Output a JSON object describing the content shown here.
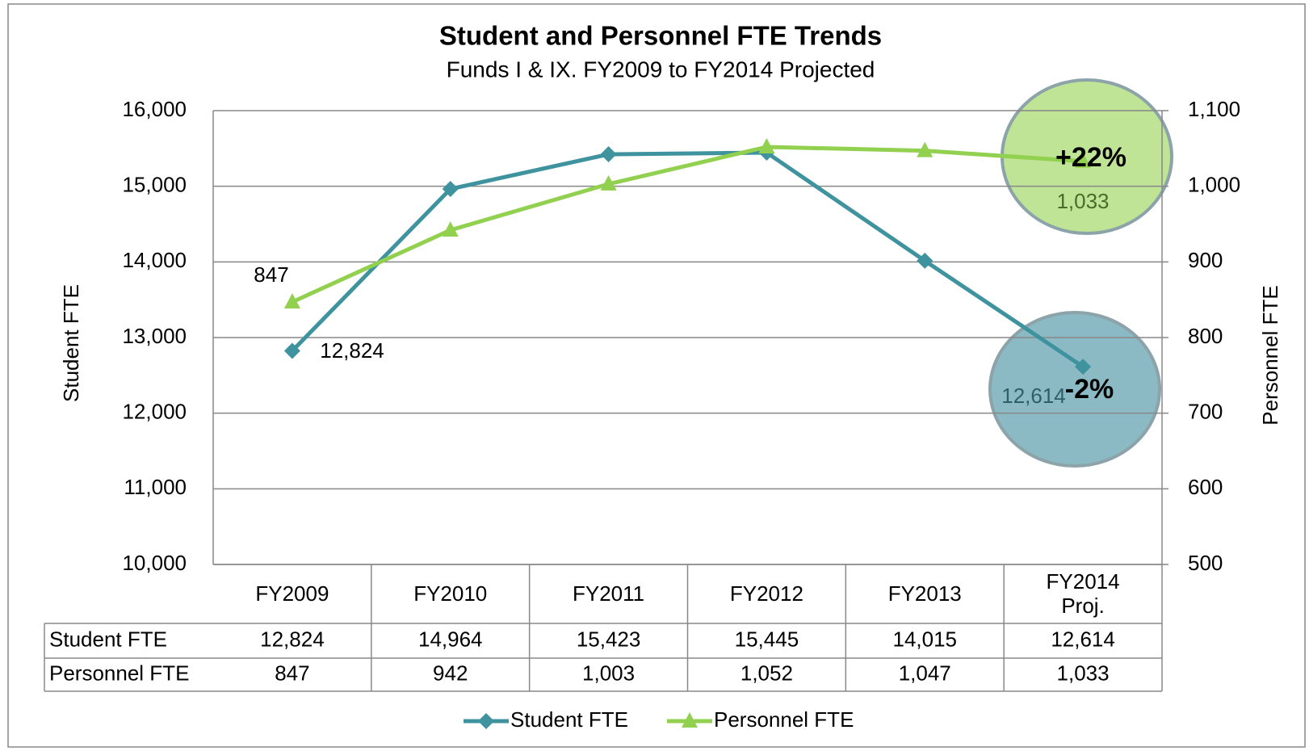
{
  "chart_data": {
    "type": "line",
    "title": "Student and Personnel FTE Trends",
    "subtitle": "Funds I & IX. FY2009 to FY2014 Projected",
    "y_label": "Student FTE",
    "y2_label": "Personnel FTE",
    "categories": [
      "FY2009",
      "FY2010",
      "FY2011",
      "FY2012",
      "FY2013",
      "FY2014\nProj."
    ],
    "ylim": [
      10000,
      16000
    ],
    "yticks": [
      {
        "value": 10000,
        "label": "10,000"
      },
      {
        "value": 11000,
        "label": "11,000"
      },
      {
        "value": 12000,
        "label": "12,000"
      },
      {
        "value": 13000,
        "label": "13,000"
      },
      {
        "value": 14000,
        "label": "14,000"
      },
      {
        "value": 15000,
        "label": "15,000"
      },
      {
        "value": 16000,
        "label": "16,000"
      }
    ],
    "y2lim": [
      500,
      1100
    ],
    "y2ticks": [
      500,
      600,
      700,
      800,
      900,
      {
        "value": 1000,
        "label": "1,000"
      },
      {
        "value": 1100,
        "label": "1,100"
      }
    ],
    "grid": true,
    "legend": "bottom",
    "series": [
      {
        "name": "Student FTE",
        "color": "#3e939f",
        "marker": "diamond",
        "axis": "y",
        "values": [
          12824,
          14964,
          15423,
          15445,
          14015,
          12614
        ],
        "value_labels": [
          "12,824",
          "14,964",
          "15,423",
          "15,445",
          "14,015",
          "12,614"
        ]
      },
      {
        "name": "Personnel FTE",
        "color": "#92d050",
        "marker": "triangle",
        "axis": "y2",
        "values": [
          847,
          942,
          1003,
          1052,
          1047,
          1033
        ],
        "value_labels": [
          "847",
          "942",
          "1,003",
          "1,052",
          "1,047",
          "1,033"
        ]
      }
    ],
    "annotations": [
      "+22%",
      "-2%"
    ]
  }
}
